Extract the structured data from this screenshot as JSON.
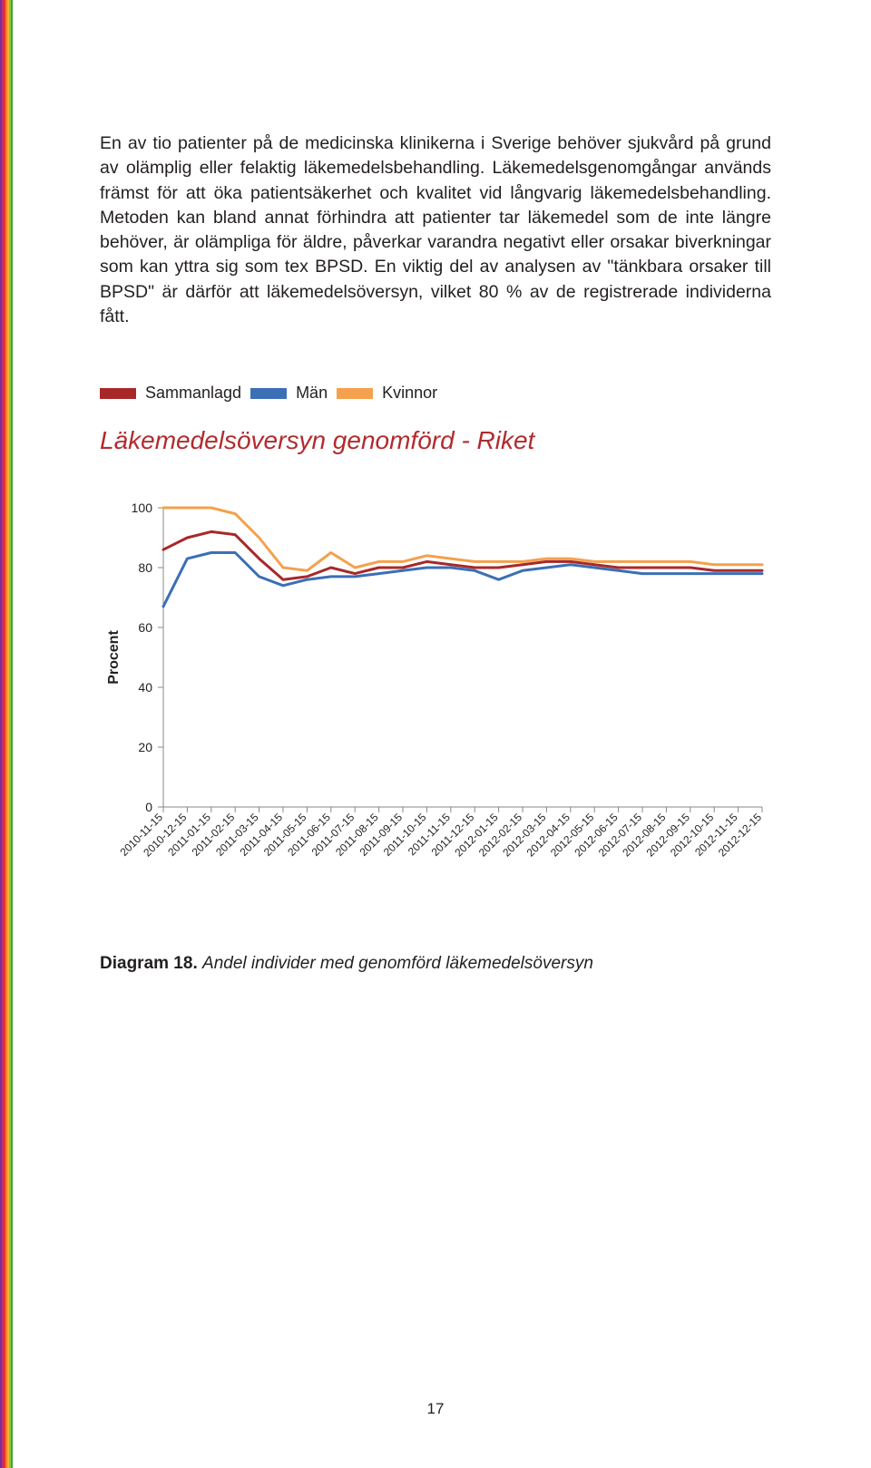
{
  "stripes": [
    "#7b2e8e",
    "#c02c7a",
    "#e3342f",
    "#f58220",
    "#f9b233",
    "#8bc53f",
    "#3aa535"
  ],
  "para": "En av tio patienter på de medicinska klinikerna i Sverige behöver sjukvård på grund av olämplig eller felaktig läkemedelsbehandling. Läkemedelsgenomgångar används främst för att öka patientsäkerhet och kvalitet vid långvarig läkemedelsbehandling. Metoden kan bland annat förhindra att patienter tar läkemedel som de inte längre behöver, är olämpliga för äldre, påverkar varandra negativt eller orsakar biverkningar som kan yttra sig som tex BPSD. En viktig del av analysen av \"tänkbara orsaker till BPSD\" är därför att läkemedelsöversyn, vilket 80 % av de registrerade individerna fått.",
  "legend": {
    "s1": {
      "label": "Sammanlagd",
      "color": "#a8282a"
    },
    "s2": {
      "label": "Män",
      "color": "#3b6fb6"
    },
    "s3": {
      "label": "Kvinnor",
      "color": "#f5a04c"
    }
  },
  "chart": {
    "title": "Läkemedelsöversyn genomförd - Riket",
    "type": "line",
    "ylabel": "Procent",
    "ylim": [
      0,
      100
    ],
    "ytick_step": 20,
    "background_color": "#ffffff",
    "axis_color": "#888888",
    "tick_font_size": 14,
    "label_font_size": 16,
    "line_width": 3,
    "x_labels": [
      "2010-11-15",
      "2010-12-15",
      "2011-01-15",
      "2011-02-15",
      "2011-03-15",
      "2011-04-15",
      "2011-05-15",
      "2011-06-15",
      "2011-07-15",
      "2011-08-15",
      "2011-09-15",
      "2011-10-15",
      "2011-11-15",
      "2011-12-15",
      "2012-01-15",
      "2012-02-15",
      "2012-03-15",
      "2012-04-15",
      "2012-05-15",
      "2012-06-15",
      "2012-07-15",
      "2012-08-15",
      "2012-09-15",
      "2012-10-15",
      "2012-11-15",
      "2012-12-15"
    ],
    "series": {
      "kvinnor": {
        "color": "#f5a04c",
        "values": [
          100,
          100,
          100,
          98,
          90,
          80,
          79,
          85,
          80,
          82,
          82,
          84,
          83,
          82,
          82,
          82,
          83,
          83,
          82,
          82,
          82,
          82,
          82,
          81,
          81,
          81
        ]
      },
      "sammanlagd": {
        "color": "#a8282a",
        "values": [
          86,
          90,
          92,
          91,
          83,
          76,
          77,
          80,
          78,
          80,
          80,
          82,
          81,
          80,
          80,
          81,
          82,
          82,
          81,
          80,
          80,
          80,
          80,
          79,
          79,
          79
        ]
      },
      "man": {
        "color": "#3b6fb6",
        "values": [
          67,
          83,
          85,
          85,
          77,
          74,
          76,
          77,
          77,
          78,
          79,
          80,
          80,
          79,
          76,
          79,
          80,
          81,
          80,
          79,
          78,
          78,
          78,
          78,
          78,
          78
        ]
      }
    }
  },
  "caption": {
    "bold": "Diagram 18.",
    "ital": "Andel individer med genomförd läkemedelsöversyn"
  },
  "page_number": "17"
}
